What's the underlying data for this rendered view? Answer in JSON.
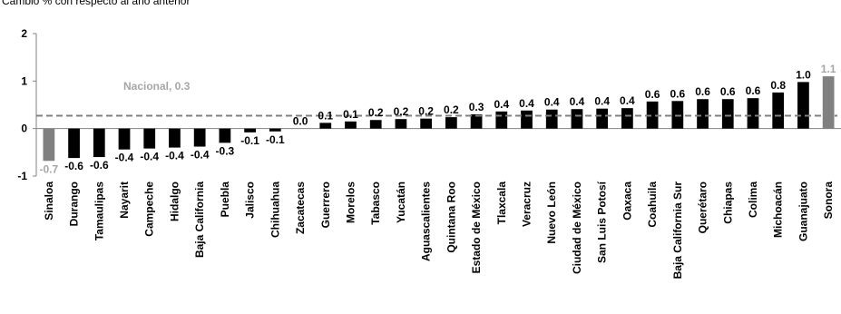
{
  "subtitle": "Cambio % con respecto al año anterior",
  "chart_data": {
    "type": "bar",
    "ylim": [
      -1,
      2
    ],
    "yticks": [
      "-1",
      "0",
      "1",
      "2"
    ],
    "categories": [
      "Sinaloa",
      "Durango",
      "Tamaulipas",
      "Nayarit",
      "Campeche",
      "Hidalgo",
      "Baja California",
      "Puebla",
      "Jalisco",
      "Chihuahua",
      "Zacatecas",
      "Guerrero",
      "Morelos",
      "Tabasco",
      "Yucatán",
      "Aguascalientes",
      "Quintana Roo",
      "Estado de México",
      "Tlaxcala",
      "Veracruz",
      "Nuevo León",
      "Ciudad de México",
      "San Luis Potosí",
      "Oaxaca",
      "Coahuila",
      "Baja California Sur",
      "Querétaro",
      "Chiapas",
      "Colima",
      "Michoacán",
      "Guanajuato",
      "Sonora"
    ],
    "values": [
      -0.68,
      -0.62,
      -0.6,
      -0.44,
      -0.42,
      -0.4,
      -0.38,
      -0.3,
      -0.08,
      -0.06,
      0.0,
      0.12,
      0.15,
      0.18,
      0.2,
      0.21,
      0.24,
      0.3,
      0.36,
      0.38,
      0.4,
      0.41,
      0.42,
      0.43,
      0.57,
      0.58,
      0.62,
      0.62,
      0.64,
      0.76,
      0.98,
      1.1
    ],
    "value_labels": [
      "-0.7",
      "-0.6",
      "-0.6",
      "-0.4",
      "-0.4",
      "-0.4",
      "-0.4",
      "-0.3",
      "-0.1",
      "-0.1",
      "0.0",
      "0.1",
      "0.1",
      "0.2",
      "0.2",
      "0.2",
      "0.2",
      "0.3",
      "0.4",
      "0.4",
      "0.4",
      "0.4",
      "0.4",
      "0.4",
      "0.6",
      "0.6",
      "0.6",
      "0.6",
      "0.6",
      "0.8",
      "1.0",
      "1.1"
    ],
    "highlight": [
      "Sinaloa",
      "Sonora"
    ],
    "reference": {
      "label": "Nacional, 0.3",
      "value": 0.27
    },
    "colors": {
      "bar": "#000000",
      "highlight": "#808080",
      "reference": "#808080",
      "reference_label": "#a6a6a6",
      "axis": "#808080"
    },
    "grid": false,
    "legend": "none"
  }
}
